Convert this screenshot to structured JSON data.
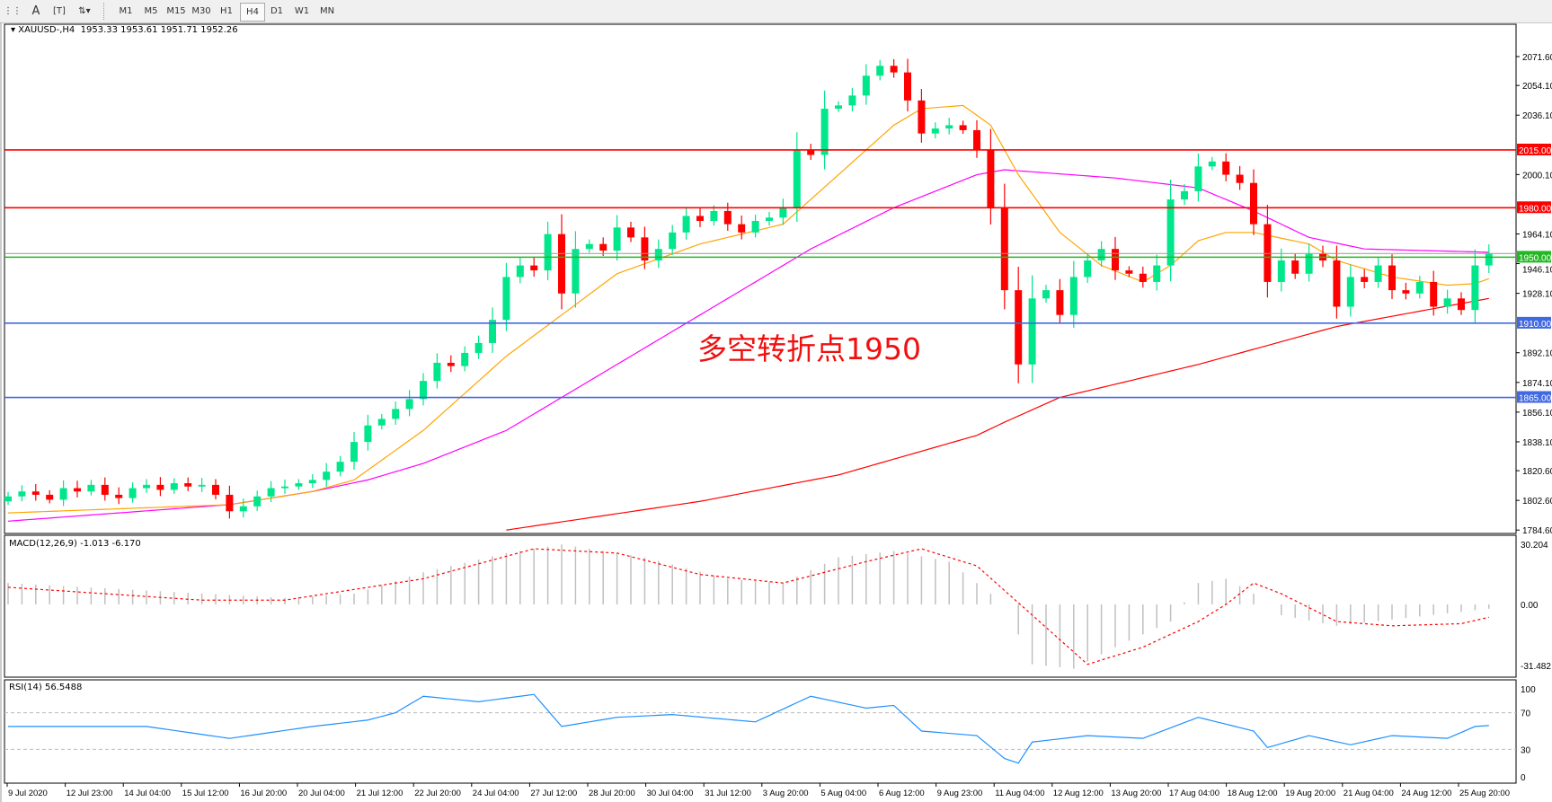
{
  "toolbar": {
    "icons": [
      "period-separator-icon",
      "text-icon",
      "text-label-icon",
      "arrows-icon"
    ],
    "timeframes": [
      "M1",
      "M5",
      "M15",
      "M30",
      "H1",
      "H4",
      "D1",
      "W1",
      "MN"
    ],
    "selected_timeframe": "H4"
  },
  "chart": {
    "symbol_label": "XAUUSD-,H4",
    "ohlc": "1953.33 1953.61 1951.71 1952.26",
    "current_price": 1952.26,
    "annotation": "多空转折点1950",
    "colors": {
      "bull": "#00e68a",
      "bear": "#ff0000",
      "ma_fast": "#ffa500",
      "ma_mid": "#ff00ff",
      "ma_slow": "#ff0000",
      "rsi": "#1e90ff",
      "macd_hist": "#c0c0c0",
      "macd_signal": "#ff0000"
    },
    "price_axis": [
      "2071.60",
      "2054.10",
      "2036.10",
      "2000.10",
      "1964.10",
      "1946.10",
      "1928.10",
      "1892.10",
      "1874.10",
      "1856.10",
      "1838.10",
      "1820.60",
      "1802.60",
      "1784.60"
    ],
    "price_range": [
      1784.6,
      2071.6
    ],
    "levels": [
      {
        "label": "2015.00",
        "value": 2015,
        "color": "#ff0000"
      },
      {
        "label": "1980.00",
        "value": 1980,
        "color": "#ff0000"
      },
      {
        "label": "1950.00",
        "value": 1950,
        "color": "#22b822"
      },
      {
        "label": "1910.00",
        "value": 1910,
        "color": "#4169e1"
      },
      {
        "label": "1865.00",
        "value": 1865,
        "color": "#4169e1"
      }
    ],
    "closes": [
      1805,
      1808,
      1806,
      1803,
      1810,
      1808,
      1812,
      1806,
      1804,
      1810,
      1812,
      1809,
      1813,
      1811,
      1812,
      1806,
      1796,
      1799,
      1805,
      1810,
      1811,
      1813,
      1815,
      1820,
      1826,
      1838,
      1848,
      1852,
      1858,
      1864,
      1875,
      1886,
      1884,
      1892,
      1898,
      1912,
      1938,
      1945,
      1942,
      1964,
      1928,
      1955,
      1958,
      1954,
      1968,
      1962,
      1948,
      1955,
      1965,
      1975,
      1972,
      1978,
      1970,
      1965,
      1972,
      1974,
      1980,
      2015,
      2012,
      2040,
      2042,
      2048,
      2060,
      2066,
      2062,
      2045,
      2025,
      2028,
      2030,
      2027,
      2015,
      1980,
      1930,
      1885,
      1925,
      1930,
      1915,
      1938,
      1948,
      1955,
      1942,
      1940,
      1935,
      1945,
      1985,
      1990,
      2005,
      2008,
      2000,
      1995,
      1970,
      1935,
      1948,
      1940,
      1952,
      1948,
      1920,
      1938,
      1935,
      1945,
      1930,
      1928,
      1935,
      1920,
      1925,
      1918,
      1945,
      1952
    ],
    "ma_fast": [
      [
        0,
        1795
      ],
      [
        16,
        1800
      ],
      [
        22,
        1808
      ],
      [
        25,
        1815
      ],
      [
        30,
        1845
      ],
      [
        36,
        1890
      ],
      [
        40,
        1915
      ],
      [
        44,
        1940
      ],
      [
        50,
        1958
      ],
      [
        56,
        1970
      ],
      [
        60,
        2000
      ],
      [
        64,
        2030
      ],
      [
        66,
        2040
      ],
      [
        69,
        2042
      ],
      [
        71,
        2030
      ],
      [
        73,
        2000
      ],
      [
        76,
        1965
      ],
      [
        79,
        1945
      ],
      [
        82,
        1935
      ],
      [
        84,
        1945
      ],
      [
        86,
        1960
      ],
      [
        88,
        1965
      ],
      [
        90,
        1965
      ],
      [
        94,
        1958
      ],
      [
        96,
        1948
      ],
      [
        100,
        1938
      ],
      [
        104,
        1933
      ],
      [
        106,
        1934
      ],
      [
        107,
        1937
      ]
    ],
    "ma_mid": [
      [
        0,
        1790
      ],
      [
        16,
        1800
      ],
      [
        22,
        1808
      ],
      [
        26,
        1815
      ],
      [
        30,
        1825
      ],
      [
        36,
        1845
      ],
      [
        42,
        1875
      ],
      [
        50,
        1915
      ],
      [
        58,
        1955
      ],
      [
        64,
        1980
      ],
      [
        70,
        2000
      ],
      [
        72,
        2003
      ],
      [
        80,
        1998
      ],
      [
        86,
        1992
      ],
      [
        90,
        1978
      ],
      [
        94,
        1962
      ],
      [
        98,
        1955
      ],
      [
        107,
        1953
      ]
    ],
    "ma_slow": [
      [
        36,
        1784.6
      ],
      [
        50,
        1802
      ],
      [
        60,
        1818
      ],
      [
        70,
        1842
      ],
      [
        72,
        1850
      ],
      [
        76,
        1865
      ],
      [
        86,
        1885
      ],
      [
        96,
        1908
      ],
      [
        107,
        1925
      ]
    ]
  },
  "macd": {
    "title": "MACD(12,26,9) -1.013 -6.170",
    "axis": [
      "30.204",
      "0.00",
      "-31.482"
    ],
    "range": [
      -31.482,
      30.204
    ],
    "histogram": [
      [
        0,
        10
      ],
      [
        20,
        3
      ],
      [
        25,
        5
      ],
      [
        30,
        15
      ],
      [
        36,
        24
      ],
      [
        40,
        28
      ],
      [
        46,
        22
      ],
      [
        52,
        12
      ],
      [
        56,
        10
      ],
      [
        60,
        22
      ],
      [
        64,
        25
      ],
      [
        68,
        20
      ],
      [
        72,
        0
      ],
      [
        74,
        -28
      ],
      [
        77,
        -30
      ],
      [
        80,
        -20
      ],
      [
        84,
        -8
      ],
      [
        86,
        10
      ],
      [
        88,
        12
      ],
      [
        90,
        5
      ],
      [
        92,
        -5
      ],
      [
        96,
        -10
      ],
      [
        107,
        -2
      ]
    ],
    "signal": [
      [
        0,
        8
      ],
      [
        14,
        2
      ],
      [
        20,
        2
      ],
      [
        30,
        12
      ],
      [
        38,
        26
      ],
      [
        44,
        24
      ],
      [
        50,
        14
      ],
      [
        56,
        10
      ],
      [
        62,
        20
      ],
      [
        66,
        26
      ],
      [
        70,
        18
      ],
      [
        74,
        -5
      ],
      [
        78,
        -28
      ],
      [
        82,
        -20
      ],
      [
        86,
        -8
      ],
      [
        88,
        0
      ],
      [
        90,
        10
      ],
      [
        92,
        5
      ],
      [
        96,
        -8
      ],
      [
        100,
        -10
      ],
      [
        105,
        -9
      ],
      [
        107,
        -6
      ]
    ]
  },
  "rsi": {
    "title": "RSI(14) 56.5488",
    "axis": [
      "100",
      "70",
      "30",
      "0"
    ],
    "levels": [
      70,
      30
    ],
    "values": [
      [
        0,
        55
      ],
      [
        10,
        55
      ],
      [
        16,
        42
      ],
      [
        22,
        55
      ],
      [
        26,
        62
      ],
      [
        28,
        70
      ],
      [
        30,
        88
      ],
      [
        34,
        82
      ],
      [
        38,
        90
      ],
      [
        40,
        55
      ],
      [
        44,
        65
      ],
      [
        48,
        68
      ],
      [
        54,
        60
      ],
      [
        58,
        88
      ],
      [
        62,
        75
      ],
      [
        64,
        78
      ],
      [
        66,
        50
      ],
      [
        70,
        45
      ],
      [
        72,
        20
      ],
      [
        73,
        15
      ],
      [
        74,
        38
      ],
      [
        78,
        45
      ],
      [
        82,
        42
      ],
      [
        86,
        65
      ],
      [
        90,
        50
      ],
      [
        91,
        32
      ],
      [
        94,
        45
      ],
      [
        97,
        35
      ],
      [
        100,
        45
      ],
      [
        104,
        42
      ],
      [
        106,
        55
      ],
      [
        107,
        56
      ]
    ]
  },
  "time_axis": [
    "9 Jul 2020",
    "12 Jul 23:00",
    "14 Jul 04:00",
    "15 Jul 12:00",
    "16 Jul 20:00",
    "20 Jul 04:00",
    "21 Jul 12:00",
    "22 Jul 20:00",
    "24 Jul 04:00",
    "27 Jul 12:00",
    "28 Jul 20:00",
    "30 Jul 04:00",
    "31 Jul 12:00",
    "3 Aug 20:00",
    "5 Aug 04:00",
    "6 Aug 12:00",
    "9 Aug 23:00",
    "11 Aug 04:00",
    "12 Aug 12:00",
    "13 Aug 20:00",
    "17 Aug 04:00",
    "18 Aug 12:00",
    "19 Aug 20:00",
    "21 Aug 04:00",
    "24 Aug 12:00",
    "25 Aug 20:00"
  ]
}
